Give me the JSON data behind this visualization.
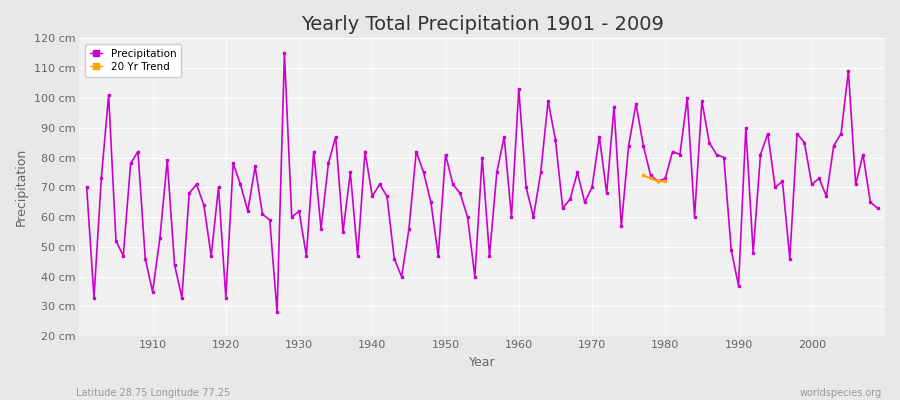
{
  "title": "Yearly Total Precipitation 1901 - 2009",
  "xlabel": "Year",
  "ylabel": "Precipitation",
  "footnote_left": "Latitude 28.75 Longitude 77.25",
  "footnote_right": "worldspecies.org",
  "ylim": [
    20,
    120
  ],
  "ytick_labels": [
    "20 cm",
    "30 cm",
    "40 cm",
    "50 cm",
    "60 cm",
    "70 cm",
    "80 cm",
    "90 cm",
    "100 cm",
    "110 cm",
    "120 cm"
  ],
  "ytick_values": [
    20,
    30,
    40,
    50,
    60,
    70,
    80,
    90,
    100,
    110,
    120
  ],
  "bg_color": "#e8e8e8",
  "plot_bg_color": "#f0f0f0",
  "line_color": "#cc00cc",
  "trend_color": "#FFA500",
  "legend_entries": [
    "Precipitation",
    "20 Yr Trend"
  ],
  "years": [
    1901,
    1902,
    1903,
    1904,
    1905,
    1906,
    1907,
    1908,
    1909,
    1910,
    1911,
    1912,
    1913,
    1914,
    1915,
    1916,
    1917,
    1918,
    1919,
    1920,
    1921,
    1922,
    1923,
    1924,
    1925,
    1926,
    1927,
    1928,
    1929,
    1930,
    1931,
    1932,
    1933,
    1934,
    1935,
    1936,
    1937,
    1938,
    1939,
    1940,
    1941,
    1942,
    1943,
    1944,
    1945,
    1946,
    1947,
    1948,
    1949,
    1950,
    1951,
    1952,
    1953,
    1954,
    1955,
    1956,
    1957,
    1958,
    1959,
    1960,
    1961,
    1962,
    1963,
    1964,
    1965,
    1966,
    1967,
    1968,
    1969,
    1970,
    1971,
    1972,
    1973,
    1974,
    1975,
    1976,
    1977,
    1978,
    1979,
    1980,
    1981,
    1982,
    1983,
    1984,
    1985,
    1986,
    1987,
    1988,
    1989,
    1990,
    1991,
    1992,
    1993,
    1994,
    1995,
    1996,
    1997,
    1998,
    1999,
    2000,
    2001,
    2002,
    2003,
    2004,
    2005,
    2006,
    2007,
    2008,
    2009
  ],
  "precip": [
    70,
    33,
    73,
    101,
    52,
    47,
    78,
    82,
    46,
    35,
    53,
    79,
    44,
    33,
    68,
    71,
    64,
    47,
    70,
    33,
    78,
    71,
    62,
    77,
    61,
    59,
    28,
    115,
    60,
    62,
    47,
    82,
    56,
    78,
    87,
    55,
    75,
    47,
    82,
    67,
    71,
    67,
    46,
    40,
    56,
    82,
    75,
    65,
    47,
    81,
    71,
    68,
    60,
    40,
    80,
    47,
    75,
    87,
    60,
    103,
    70,
    60,
    75,
    99,
    86,
    63,
    66,
    75,
    65,
    70,
    87,
    68,
    97,
    57,
    84,
    98,
    84,
    74,
    72,
    73,
    82,
    81,
    100,
    60,
    99,
    85,
    81,
    80,
    49,
    37,
    90,
    48,
    81,
    88,
    70,
    72,
    46,
    88,
    85,
    71,
    73,
    67,
    84,
    88,
    109,
    71,
    81,
    65,
    63
  ],
  "trend_years": [
    1977,
    1978,
    1979,
    1980
  ],
  "trend_values": [
    74,
    73,
    72,
    72
  ],
  "xlim": [
    1900,
    2010
  ],
  "xtick_values": [
    1910,
    1920,
    1930,
    1940,
    1950,
    1960,
    1970,
    1980,
    1990,
    2000
  ],
  "grid_color": "#ffffff",
  "title_fontsize": 14,
  "tick_fontsize": 8,
  "label_fontsize": 9
}
